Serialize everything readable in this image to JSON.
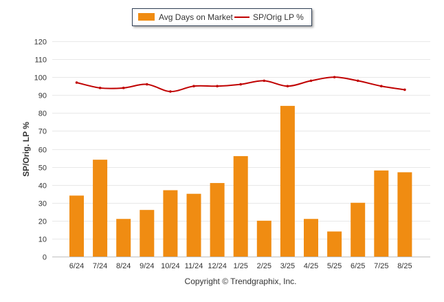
{
  "legend": {
    "bar_label": "Avg Days on Market",
    "line_label": "SP/Orig LP %"
  },
  "copyright": "Copyright © Trendgraphix, Inc.",
  "colors": {
    "bar": "#f08c12",
    "line": "#c00000",
    "grid": "#e8e8e8",
    "axis_text": "#333333"
  },
  "chart_data": {
    "type": "bar",
    "categories": [
      "6/24",
      "7/24",
      "8/24",
      "9/24",
      "10/24",
      "11/24",
      "12/24",
      "1/25",
      "2/25",
      "3/25",
      "4/25",
      "5/25",
      "6/25",
      "7/25",
      "8/25"
    ],
    "series": [
      {
        "name": "Avg Days on Market",
        "type": "bar",
        "values": [
          34,
          54,
          21,
          26,
          37,
          35,
          41,
          56,
          20,
          84,
          21,
          14,
          30,
          48,
          47
        ]
      },
      {
        "name": "SP/Orig LP %",
        "type": "line",
        "values": [
          97,
          94,
          94,
          96,
          92,
          95,
          95,
          96,
          98,
          95,
          98,
          100,
          98,
          95,
          93
        ]
      }
    ],
    "ylabel": "SP/Orig. LP %",
    "ylim": [
      0,
      120
    ],
    "yticks": [
      0,
      10,
      20,
      30,
      40,
      50,
      60,
      70,
      80,
      90,
      100,
      110,
      120
    ],
    "grid": true,
    "legend_position": "top-center"
  }
}
